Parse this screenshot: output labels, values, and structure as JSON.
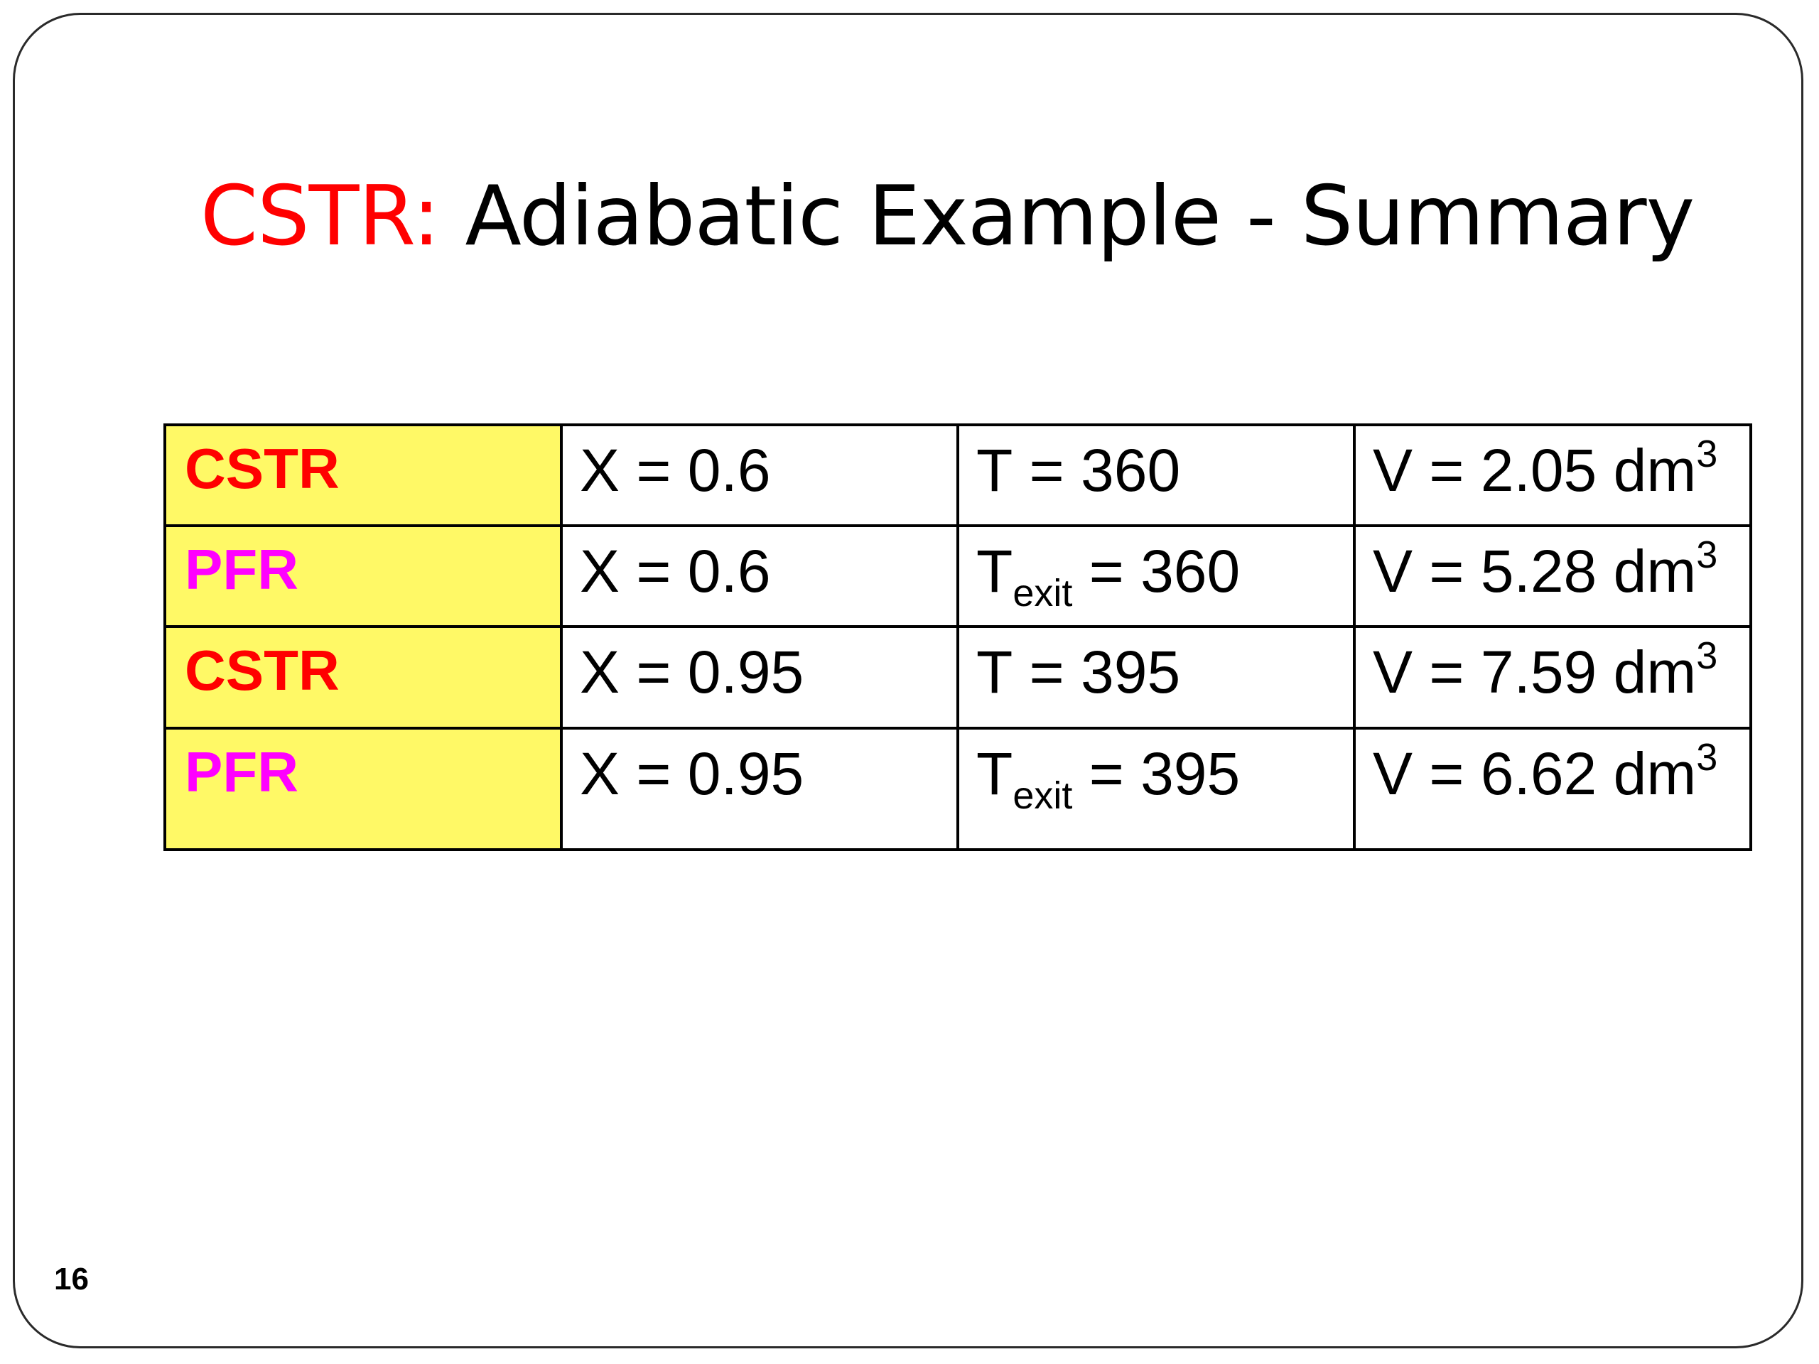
{
  "slide": {
    "title_accent": "CSTR:",
    "title_main": " Adiabatic Example - Summary",
    "page_number": "16",
    "colors": {
      "title_accent": "#ff0000",
      "cstr_label": "#ff0000",
      "pfr_label": "#ff00ff",
      "label_cell_background": "#fff966"
    }
  },
  "summary_table": {
    "rows": [
      {
        "reactor": "CSTR",
        "conversion": "X = 0.6",
        "temp_symbol": "T",
        "temp_subscript": "",
        "temp_value": " = 360",
        "volume_text": "V = 2.05 dm",
        "volume_exponent": "3"
      },
      {
        "reactor": "PFR",
        "conversion": "X = 0.6",
        "temp_symbol": "T",
        "temp_subscript": "exit",
        "temp_value": " = 360",
        "volume_text": "V = 5.28 dm",
        "volume_exponent": "3"
      },
      {
        "reactor": "CSTR",
        "conversion": "X = 0.95",
        "temp_symbol": "T",
        "temp_subscript": "",
        "temp_value": " = 395",
        "volume_text": "V = 7.59 dm",
        "volume_exponent": "3"
      },
      {
        "reactor": "PFR",
        "conversion": "X = 0.95",
        "temp_symbol": "T",
        "temp_subscript": "exit",
        "temp_value": " = 395",
        "volume_text": "V = 6.62 dm",
        "volume_exponent": "3"
      }
    ]
  }
}
